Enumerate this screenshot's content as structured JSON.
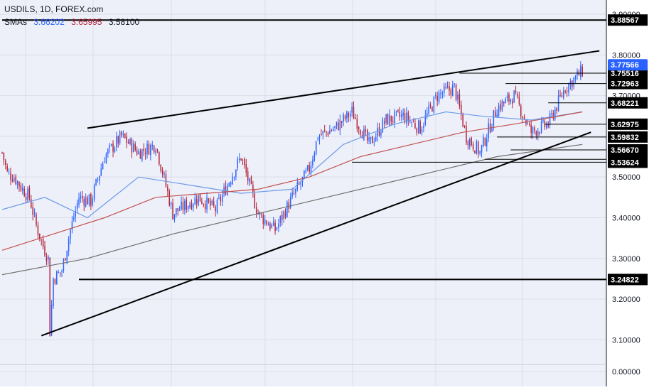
{
  "header": {
    "title": "USDILS, 1D, FOREX.com",
    "sma_label": "SMAs",
    "sma_values": [
      "3.66202",
      "3.65995",
      "3.58100"
    ]
  },
  "colors": {
    "background": "#eef0f9",
    "grid": "#d9dde8",
    "candle_up": "#2962ff",
    "candle_down": "#b2243a",
    "sma_fast": "#6b9be8",
    "sma_mid": "#c0504d",
    "sma_slow": "#6e6e6e",
    "line": "#000000",
    "label_bg": "#000000",
    "label_text": "#ffffff",
    "last_price_bg": "#2962ff"
  },
  "chart_data": {
    "type": "candlestick",
    "symbol": "USDILS",
    "interval": "1D",
    "source": "FOREX.com",
    "y_scale": "broken",
    "ylim_main": [
      3.05,
      3.9
    ],
    "y_tick_labels": [
      "0.00000",
      "3.10000",
      "3.20000",
      "3.30000",
      "3.40000",
      "3.50000",
      "3.60000",
      "3.70000",
      "3.80000",
      "3.90000"
    ],
    "price_path": [
      [
        0,
        3.56
      ],
      [
        3,
        3.51
      ],
      [
        7,
        3.5
      ],
      [
        12,
        3.47
      ],
      [
        16,
        3.45
      ],
      [
        20,
        3.38
      ],
      [
        24,
        3.33
      ],
      [
        27,
        3.3
      ],
      [
        28,
        3.12
      ],
      [
        30,
        3.25
      ],
      [
        35,
        3.27
      ],
      [
        40,
        3.37
      ],
      [
        45,
        3.45
      ],
      [
        52,
        3.44
      ],
      [
        60,
        3.55
      ],
      [
        70,
        3.6
      ],
      [
        80,
        3.56
      ],
      [
        90,
        3.58
      ],
      [
        100,
        3.41
      ],
      [
        115,
        3.45
      ],
      [
        125,
        3.42
      ],
      [
        140,
        3.55
      ],
      [
        150,
        3.41
      ],
      [
        160,
        3.37
      ],
      [
        170,
        3.45
      ],
      [
        180,
        3.52
      ],
      [
        185,
        3.6
      ],
      [
        195,
        3.62
      ],
      [
        205,
        3.66
      ],
      [
        215,
        3.58
      ],
      [
        225,
        3.64
      ],
      [
        235,
        3.65
      ],
      [
        245,
        3.62
      ],
      [
        255,
        3.7
      ],
      [
        265,
        3.72
      ],
      [
        272,
        3.6
      ],
      [
        280,
        3.56
      ],
      [
        290,
        3.67
      ],
      [
        300,
        3.7
      ],
      [
        310,
        3.61
      ],
      [
        320,
        3.63
      ],
      [
        330,
        3.72
      ],
      [
        340,
        3.76
      ]
    ],
    "sma_paths": [
      {
        "name": "SMA 1",
        "value": "3.66202",
        "points": [
          [
            0,
            3.42
          ],
          [
            25,
            3.45
          ],
          [
            50,
            3.4
          ],
          [
            80,
            3.5
          ],
          [
            110,
            3.48
          ],
          [
            140,
            3.46
          ],
          [
            170,
            3.47
          ],
          [
            200,
            3.58
          ],
          [
            230,
            3.63
          ],
          [
            260,
            3.66
          ],
          [
            280,
            3.65
          ],
          [
            310,
            3.64
          ],
          [
            340,
            3.66
          ]
        ]
      },
      {
        "name": "SMA 2",
        "value": "3.65995",
        "points": [
          [
            0,
            3.32
          ],
          [
            30,
            3.36
          ],
          [
            60,
            3.4
          ],
          [
            90,
            3.45
          ],
          [
            120,
            3.46
          ],
          [
            150,
            3.47
          ],
          [
            180,
            3.5
          ],
          [
            210,
            3.55
          ],
          [
            240,
            3.58
          ],
          [
            270,
            3.61
          ],
          [
            300,
            3.63
          ],
          [
            340,
            3.66
          ]
        ]
      },
      {
        "name": "SMA 3",
        "value": "3.58100",
        "points": [
          [
            0,
            3.26
          ],
          [
            50,
            3.3
          ],
          [
            100,
            3.36
          ],
          [
            150,
            3.41
          ],
          [
            200,
            3.46
          ],
          [
            250,
            3.51
          ],
          [
            290,
            3.55
          ],
          [
            340,
            3.58
          ]
        ]
      }
    ],
    "trendlines": [
      {
        "x1": 50,
        "y1": 3.62,
        "x2": 350,
        "y2": 3.81
      },
      {
        "x1": 23,
        "y1": 3.11,
        "x2": 345,
        "y2": 3.61
      }
    ],
    "horizontal_levels": [
      {
        "label": "3.88567",
        "value": 3.88567,
        "x_start": 0
      },
      {
        "label": "3.75516",
        "value": 3.75516,
        "x_start": 268
      },
      {
        "label": "3.72963",
        "value": 3.72963,
        "x_start": 295
      },
      {
        "label": "3.68221",
        "value": 3.68221,
        "x_start": 320
      },
      {
        "label": "3.62975",
        "value": 3.62975,
        "x_start": 318
      },
      {
        "label": "3.59832",
        "value": 3.59832,
        "x_start": 290
      },
      {
        "label": "3.56670",
        "value": 3.5667,
        "x_start": 298
      },
      {
        "label": "3.54347",
        "value": 3.54347,
        "x_start": 283
      },
      {
        "label": "3.53624",
        "value": 3.53624,
        "x_start": 205
      },
      {
        "label": "3.24822",
        "value": 3.24822,
        "x_start": 45
      }
    ],
    "last_price": {
      "label": "3.77566",
      "value": 3.77566
    },
    "x_index_range": [
      0,
      352
    ]
  }
}
